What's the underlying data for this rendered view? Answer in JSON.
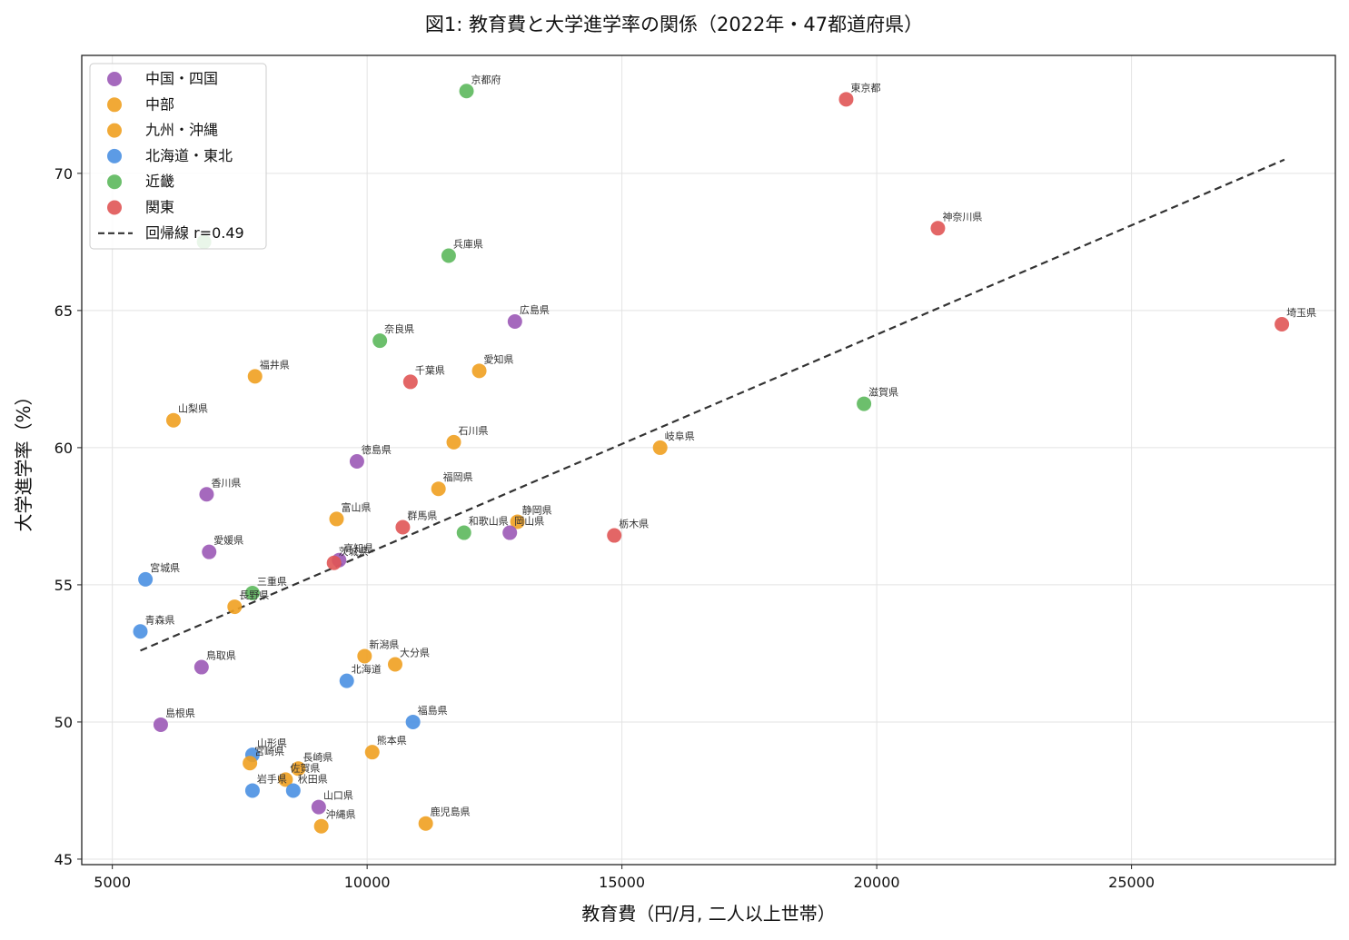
{
  "chart_data": {
    "type": "scatter",
    "title": "図1: 教育費と大学進学率の関係（2022年・47都道府県）",
    "xlabel": "教育費（円/月, 二人以上世帯）",
    "ylabel": "大学進学率（%）",
    "xlim": [
      4400,
      29000
    ],
    "ylim": [
      44.8,
      74.3
    ],
    "xticks": [
      5000,
      10000,
      15000,
      20000,
      25000
    ],
    "yticks": [
      45,
      50,
      55,
      60,
      65,
      70
    ],
    "grid": true,
    "legend_position": "top-left",
    "regions": [
      {
        "name": "中国・四国",
        "color": "#9b59b6"
      },
      {
        "name": "中部",
        "color": "#f0a020"
      },
      {
        "name": "九州・沖縄",
        "color": "#f0a020"
      },
      {
        "name": "北海道・東北",
        "color": "#4a90e2"
      },
      {
        "name": "近畿",
        "color": "#5cb85c"
      },
      {
        "name": "関東",
        "color": "#e05555"
      }
    ],
    "regression": {
      "label": "回帰線 r=0.49",
      "x": [
        5550,
        28000
      ],
      "y": [
        52.6,
        70.5
      ],
      "color": "#333333",
      "style": "dashed"
    },
    "points": [
      {
        "label": "京都府",
        "region": "近畿",
        "x": 11950,
        "y": 73.0
      },
      {
        "label": "東京都",
        "region": "関東",
        "x": 19400,
        "y": 72.7
      },
      {
        "label": "神奈川県",
        "region": "関東",
        "x": 21200,
        "y": 68.0
      },
      {
        "label": "",
        "region": "近畿",
        "x": 6800,
        "y": 67.5
      },
      {
        "label": "兵庫県",
        "region": "近畿",
        "x": 11600,
        "y": 67.0
      },
      {
        "label": "広島県",
        "region": "中国・四国",
        "x": 12900,
        "y": 64.6
      },
      {
        "label": "埼玉県",
        "region": "関東",
        "x": 27950,
        "y": 64.5
      },
      {
        "label": "奈良県",
        "region": "近畿",
        "x": 10250,
        "y": 63.9
      },
      {
        "label": "愛知県",
        "region": "中部",
        "x": 12200,
        "y": 62.8
      },
      {
        "label": "福井県",
        "region": "中部",
        "x": 7800,
        "y": 62.6
      },
      {
        "label": "千葉県",
        "region": "関東",
        "x": 10850,
        "y": 62.4
      },
      {
        "label": "滋賀県",
        "region": "近畿",
        "x": 19750,
        "y": 61.6
      },
      {
        "label": "山梨県",
        "region": "中部",
        "x": 6200,
        "y": 61.0
      },
      {
        "label": "石川県",
        "region": "中部",
        "x": 11700,
        "y": 60.2
      },
      {
        "label": "岐阜県",
        "region": "中部",
        "x": 15750,
        "y": 60.0
      },
      {
        "label": "徳島県",
        "region": "中国・四国",
        "x": 9800,
        "y": 59.5
      },
      {
        "label": "福岡県",
        "region": "九州・沖縄",
        "x": 11400,
        "y": 58.5
      },
      {
        "label": "香川県",
        "region": "中国・四国",
        "x": 6850,
        "y": 58.3
      },
      {
        "label": "富山県",
        "region": "中部",
        "x": 9400,
        "y": 57.4
      },
      {
        "label": "静岡県",
        "region": "中部",
        "x": 12950,
        "y": 57.3
      },
      {
        "label": "群馬県",
        "region": "関東",
        "x": 10700,
        "y": 57.1
      },
      {
        "label": "和歌山県",
        "region": "近畿",
        "x": 11900,
        "y": 56.9
      },
      {
        "label": "岡山県",
        "region": "中国・四国",
        "x": 12800,
        "y": 56.9
      },
      {
        "label": "栃木県",
        "region": "関東",
        "x": 14850,
        "y": 56.8
      },
      {
        "label": "愛媛県",
        "region": "中国・四国",
        "x": 6900,
        "y": 56.2
      },
      {
        "label": "高知県",
        "region": "中国・四国",
        "x": 9450,
        "y": 55.9
      },
      {
        "label": "茨城県",
        "region": "関東",
        "x": 9350,
        "y": 55.8
      },
      {
        "label": "宮城県",
        "region": "北海道・東北",
        "x": 5650,
        "y": 55.2
      },
      {
        "label": "三重県",
        "region": "近畿",
        "x": 7750,
        "y": 54.7
      },
      {
        "label": "長野県",
        "region": "中部",
        "x": 7400,
        "y": 54.2
      },
      {
        "label": "青森県",
        "region": "北海道・東北",
        "x": 5550,
        "y": 53.3
      },
      {
        "label": "新潟県",
        "region": "中部",
        "x": 9950,
        "y": 52.4
      },
      {
        "label": "大分県",
        "region": "九州・沖縄",
        "x": 10550,
        "y": 52.1
      },
      {
        "label": "鳥取県",
        "region": "中国・四国",
        "x": 6750,
        "y": 52.0
      },
      {
        "label": "北海道",
        "region": "北海道・東北",
        "x": 9600,
        "y": 51.5
      },
      {
        "label": "福島県",
        "region": "北海道・東北",
        "x": 10900,
        "y": 50.0
      },
      {
        "label": "島根県",
        "region": "中国・四国",
        "x": 5950,
        "y": 49.9
      },
      {
        "label": "熊本県",
        "region": "九州・沖縄",
        "x": 10100,
        "y": 48.9
      },
      {
        "label": "山形県",
        "region": "北海道・東北",
        "x": 7750,
        "y": 48.8
      },
      {
        "label": "宮崎県",
        "region": "九州・沖縄",
        "x": 7700,
        "y": 48.5
      },
      {
        "label": "長崎県",
        "region": "九州・沖縄",
        "x": 8650,
        "y": 48.3
      },
      {
        "label": "佐賀県",
        "region": "九州・沖縄",
        "x": 8400,
        "y": 47.9
      },
      {
        "label": "岩手県",
        "region": "北海道・東北",
        "x": 7750,
        "y": 47.5
      },
      {
        "label": "秋田県",
        "region": "北海道・東北",
        "x": 8550,
        "y": 47.5
      },
      {
        "label": "山口県",
        "region": "中国・四国",
        "x": 9050,
        "y": 46.9
      },
      {
        "label": "鹿児島県",
        "region": "九州・沖縄",
        "x": 11150,
        "y": 46.3
      },
      {
        "label": "沖縄県",
        "region": "九州・沖縄",
        "x": 9100,
        "y": 46.2
      }
    ]
  }
}
